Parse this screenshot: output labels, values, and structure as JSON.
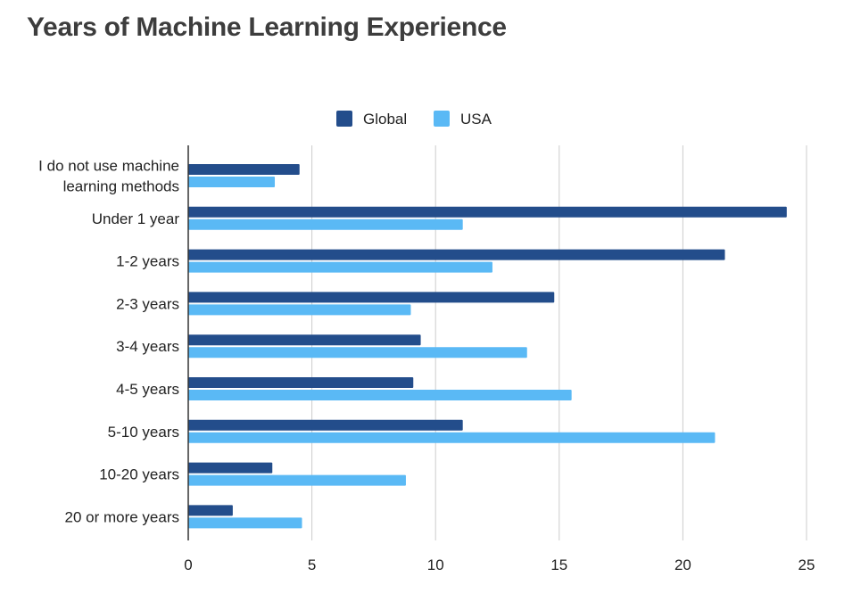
{
  "chart_data": {
    "type": "bar",
    "orientation": "horizontal",
    "title": "Years of Machine Learning Experience",
    "categories": [
      [
        "I do not use machine",
        "learning methods"
      ],
      [
        "Under 1 year"
      ],
      [
        "1-2 years"
      ],
      [
        "2-3 years"
      ],
      [
        "3-4 years"
      ],
      [
        "4-5 years"
      ],
      [
        "5-10 years"
      ],
      [
        "10-20 years"
      ],
      [
        "20 or more years"
      ]
    ],
    "series": [
      {
        "name": "Global",
        "color": "#234d8b",
        "values": [
          4.5,
          24.2,
          21.7,
          14.8,
          9.4,
          9.1,
          11.1,
          3.4,
          1.8
        ]
      },
      {
        "name": "USA",
        "color": "#5ab9f5",
        "values": [
          3.5,
          11.1,
          12.3,
          9.0,
          13.7,
          15.5,
          21.3,
          8.8,
          4.6
        ]
      }
    ],
    "xlim": [
      0,
      25
    ],
    "xticks": [
      "0",
      "5",
      "10",
      "15",
      "20",
      "25"
    ],
    "grid": true,
    "legend": "top-center"
  }
}
